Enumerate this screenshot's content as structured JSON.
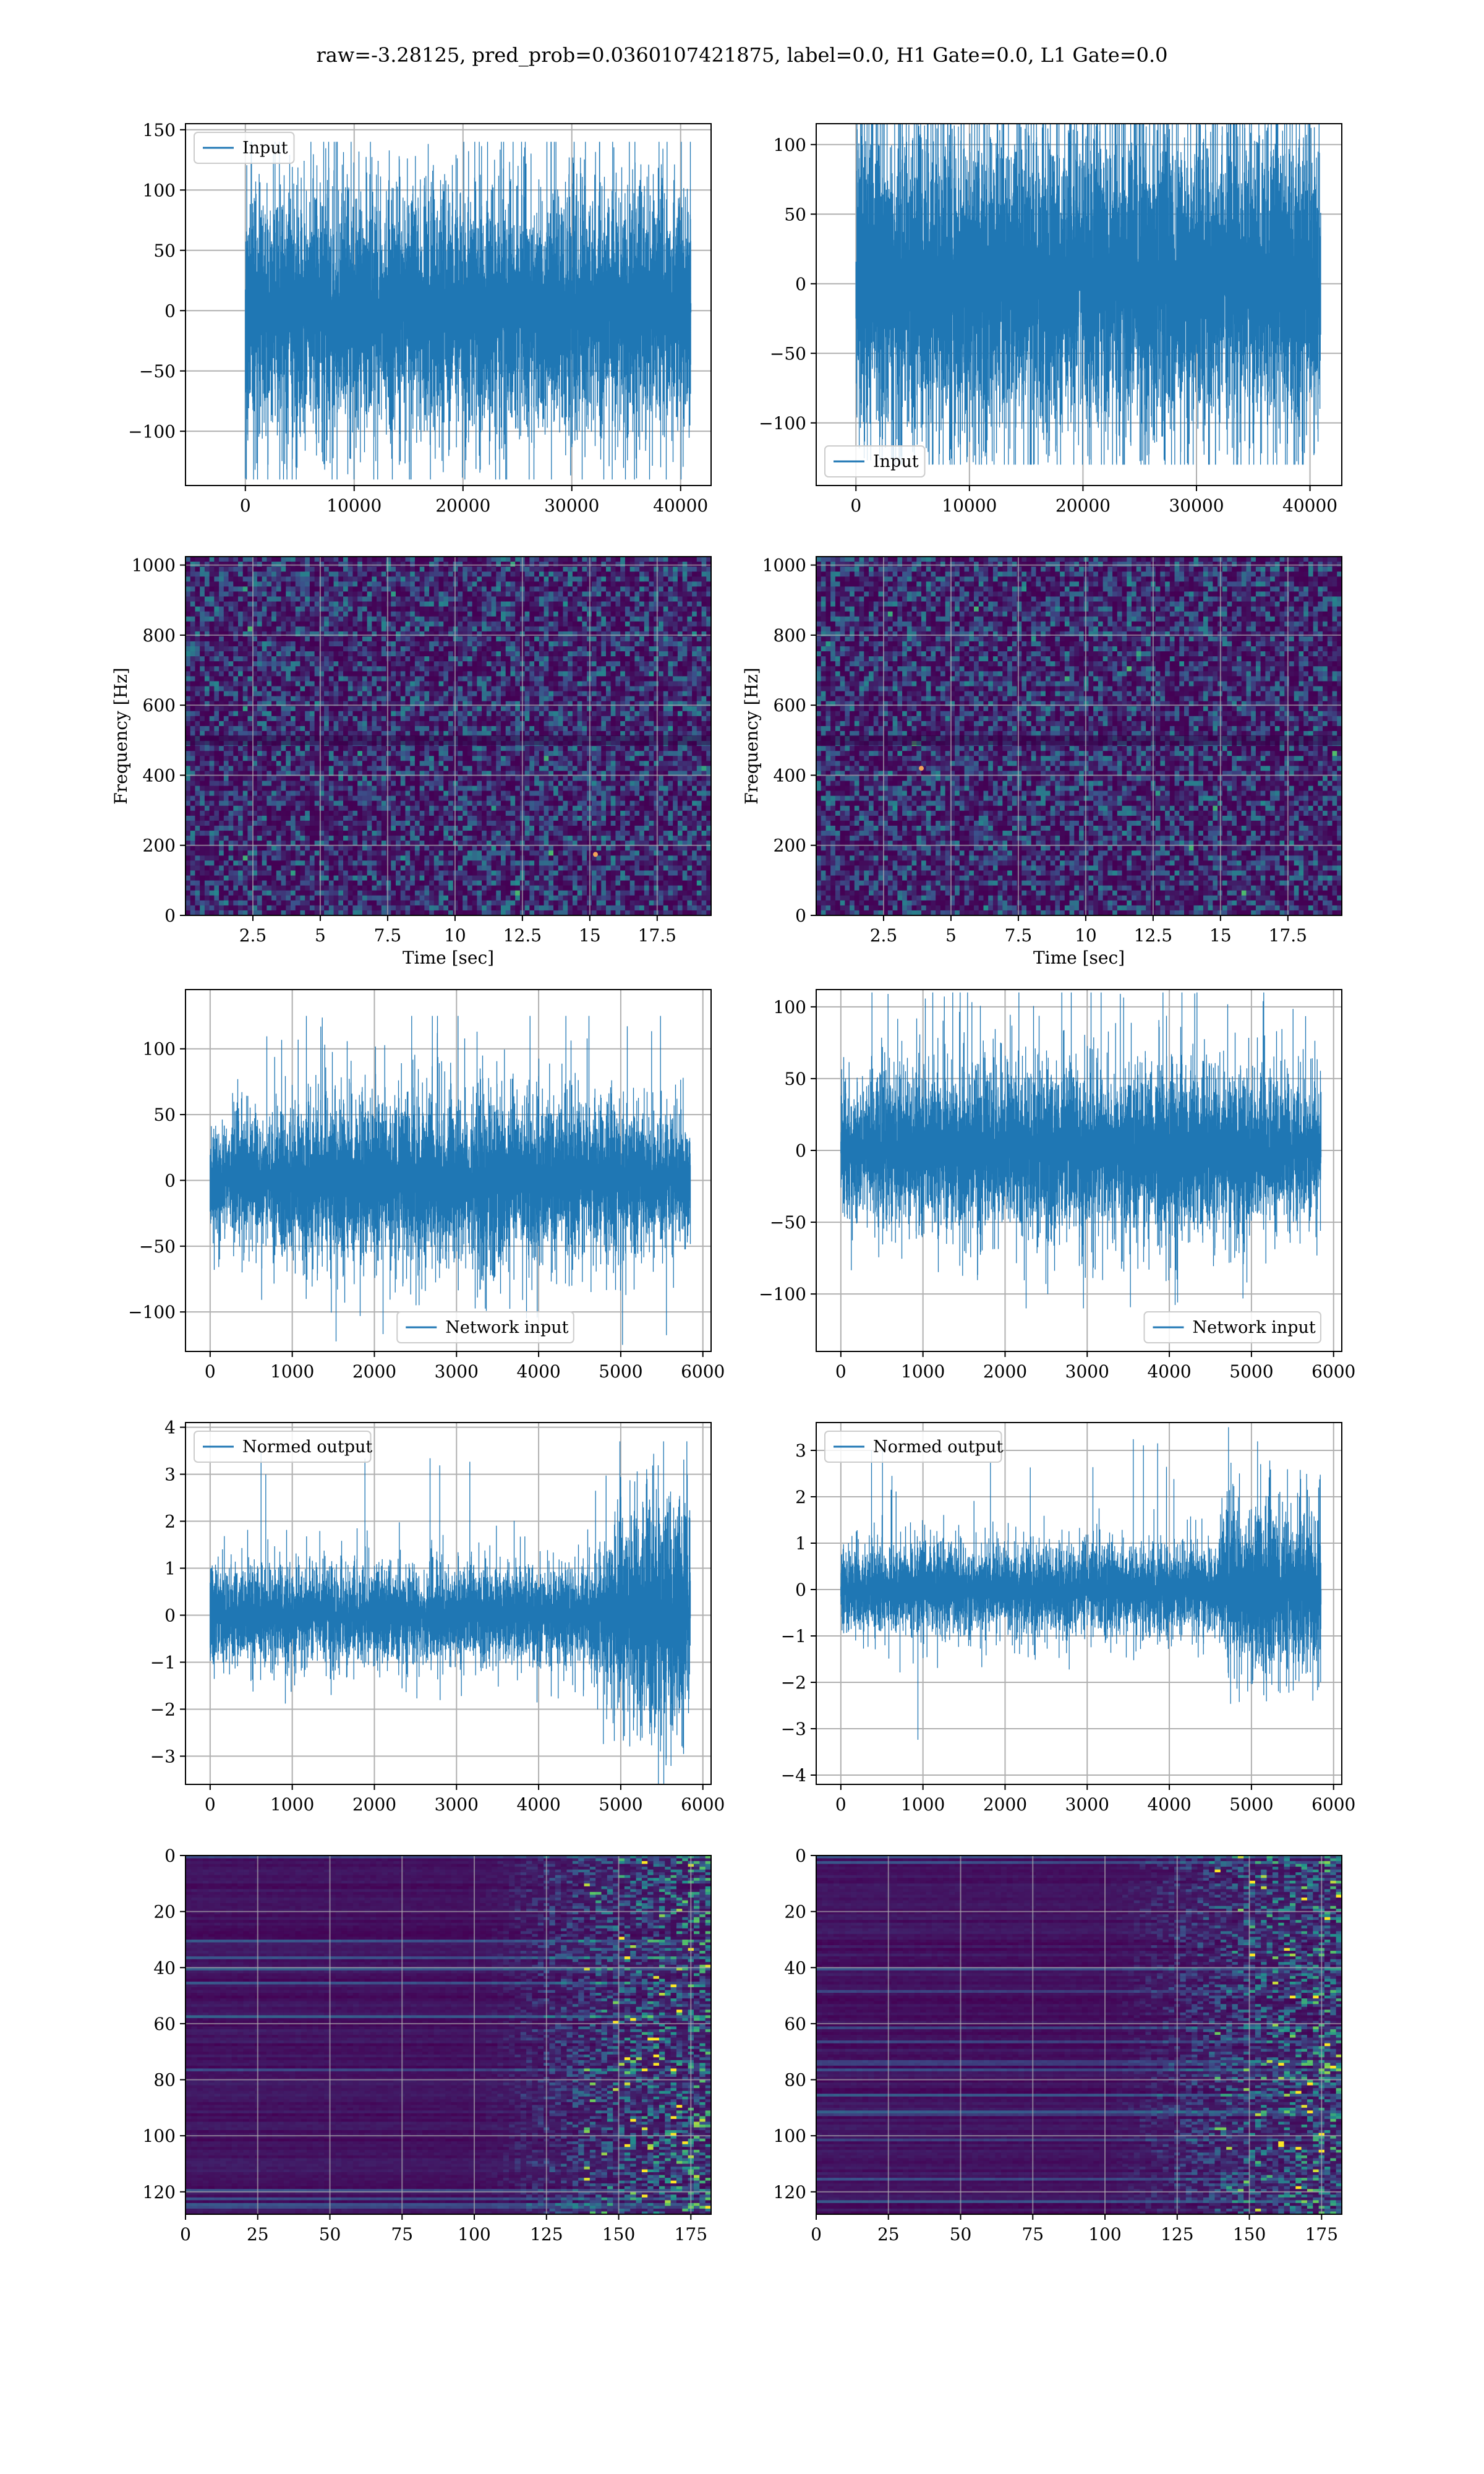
{
  "figure": {
    "title": "raw=-3.28125, pred_prob=0.0360107421875, label=0.0, H1 Gate=0.0, L1 Gate=0.0",
    "line_color": "#1f77b4",
    "grid_color": "#b0b0b0"
  },
  "chart_data": [
    {
      "id": "input-h1",
      "type": "line",
      "series": [
        {
          "name": "Input",
          "samples": 40960,
          "amp_core": 55,
          "amp_peak": 140
        }
      ],
      "xlim": [
        -5500,
        42800
      ],
      "ylim": [
        -145,
        155
      ],
      "xticks": [
        0,
        10000,
        20000,
        30000,
        40000
      ],
      "yticks": [
        -100,
        -50,
        0,
        50,
        100,
        150
      ],
      "legend": "top-left",
      "grid": true
    },
    {
      "id": "input-l1",
      "type": "line",
      "series": [
        {
          "name": "Input",
          "samples": 40960,
          "amp_core": 60,
          "amp_peak": 130
        }
      ],
      "xlim": [
        -3500,
        42800
      ],
      "ylim": [
        -145,
        115
      ],
      "xticks": [
        0,
        10000,
        20000,
        30000,
        40000
      ],
      "yticks": [
        -100,
        -50,
        0,
        50,
        100
      ],
      "legend": "bottom-left",
      "grid": true
    },
    {
      "id": "spectrogram-h1",
      "type": "heatmap",
      "xlabel": "Time [sec]",
      "ylabel": "Frequency [Hz]",
      "xlim": [
        0,
        19.5
      ],
      "ylim": [
        0,
        1024
      ],
      "xticks": [
        2.5,
        5.0,
        7.5,
        10.0,
        12.5,
        15.0,
        17.5
      ],
      "yticks": [
        0,
        200,
        400,
        600,
        800,
        1000
      ],
      "grid": true
    },
    {
      "id": "spectrogram-l1",
      "type": "heatmap",
      "xlabel": "Time [sec]",
      "ylabel": "Frequency [Hz]",
      "xlim": [
        0,
        19.5
      ],
      "ylim": [
        0,
        1024
      ],
      "xticks": [
        2.5,
        5.0,
        7.5,
        10.0,
        12.5,
        15.0,
        17.5
      ],
      "yticks": [
        0,
        200,
        400,
        600,
        800,
        1000
      ],
      "grid": true
    },
    {
      "id": "network-input-h1",
      "type": "line",
      "series": [
        {
          "name": "Network input",
          "samples": 5850,
          "amp_core": 30,
          "amp_peak": 125
        }
      ],
      "xlim": [
        -300,
        6100
      ],
      "ylim": [
        -130,
        145
      ],
      "xticks": [
        0,
        1000,
        2000,
        3000,
        4000,
        5000,
        6000
      ],
      "yticks": [
        -100,
        -50,
        0,
        50,
        100
      ],
      "legend": "bottom-center",
      "grid": true
    },
    {
      "id": "network-input-l1",
      "type": "line",
      "series": [
        {
          "name": "Network input",
          "samples": 5850,
          "amp_core": 28,
          "amp_peak": 110
        }
      ],
      "xlim": [
        -300,
        6100
      ],
      "ylim": [
        -140,
        112
      ],
      "xticks": [
        0,
        1000,
        2000,
        3000,
        4000,
        5000,
        6000
      ],
      "yticks": [
        -100,
        -50,
        0,
        50,
        100
      ],
      "legend": "bottom-right",
      "grid": true
    },
    {
      "id": "normed-output-h1",
      "type": "line",
      "series": [
        {
          "name": "Normed output",
          "samples": 5850,
          "amp_core": 0.55,
          "amp_peak": 3.7
        }
      ],
      "xlim": [
        -300,
        6100
      ],
      "ylim": [
        -3.6,
        4.1
      ],
      "xticks": [
        0,
        1000,
        2000,
        3000,
        4000,
        5000,
        6000
      ],
      "yticks": [
        -3,
        -2,
        -1,
        0,
        1,
        2,
        3,
        4
      ],
      "legend": "top-left",
      "grid": true
    },
    {
      "id": "normed-output-l1",
      "type": "line",
      "series": [
        {
          "name": "Normed output",
          "samples": 5850,
          "amp_core": 0.5,
          "amp_peak": 3.5
        }
      ],
      "xlim": [
        -300,
        6100
      ],
      "ylim": [
        -4.2,
        3.6
      ],
      "xticks": [
        0,
        1000,
        2000,
        3000,
        4000,
        5000,
        6000
      ],
      "yticks": [
        -4,
        -3,
        -2,
        -1,
        0,
        1,
        2,
        3
      ],
      "legend": "top-left",
      "grid": true
    },
    {
      "id": "embedding-h1",
      "type": "heatmap",
      "xlim": [
        0,
        182
      ],
      "ylim": [
        128,
        0
      ],
      "xticks": [
        0,
        25,
        50,
        75,
        100,
        125,
        150,
        175
      ],
      "yticks": [
        0,
        20,
        40,
        60,
        80,
        100,
        120
      ],
      "grid": true
    },
    {
      "id": "embedding-l1",
      "type": "heatmap",
      "xlim": [
        0,
        182
      ],
      "ylim": [
        128,
        0
      ],
      "xticks": [
        0,
        25,
        50,
        75,
        100,
        125,
        150,
        175
      ],
      "yticks": [
        0,
        20,
        40,
        60,
        80,
        100,
        120
      ],
      "grid": true
    }
  ]
}
